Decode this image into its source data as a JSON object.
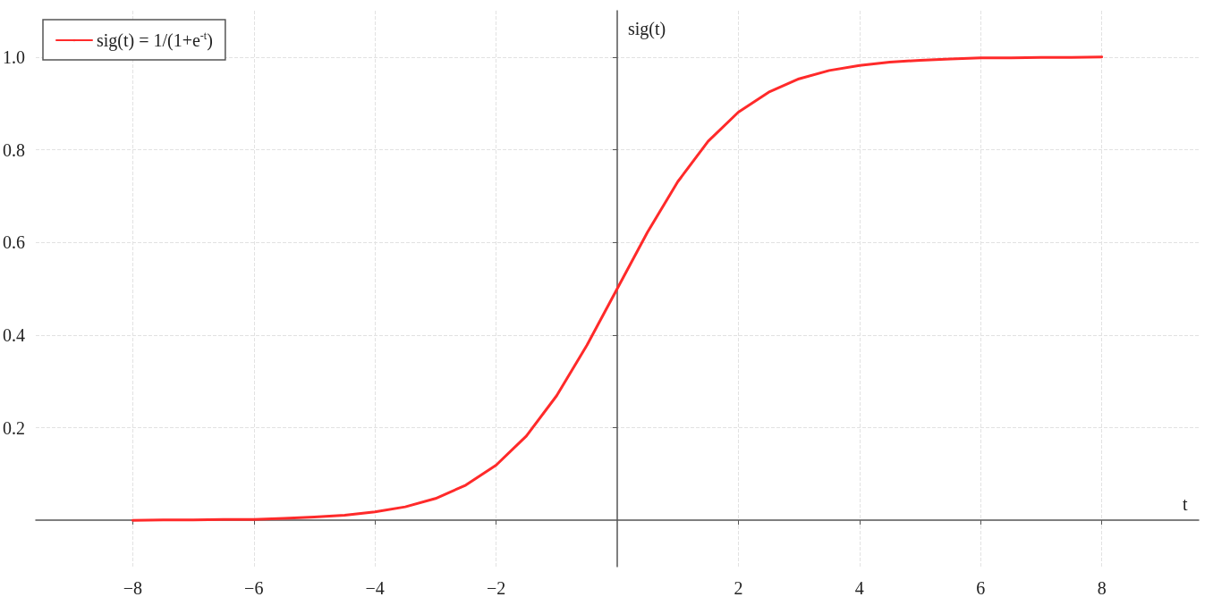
{
  "chart_data": {
    "type": "line",
    "xlabel": "t",
    "ylabel": "sig(t)",
    "x": [
      -8,
      -7.5,
      -7,
      -6.5,
      -6,
      -5.5,
      -5,
      -4.5,
      -4,
      -3.5,
      -3,
      -2.5,
      -2,
      -1.5,
      -1,
      -0.5,
      0,
      0.5,
      1,
      1.5,
      2,
      2.5,
      3,
      3.5,
      4,
      4.5,
      5,
      5.5,
      6,
      6.5,
      7,
      7.5,
      8
    ],
    "series": [
      {
        "name": "sig(t) = 1/(1+e$^{-t}$)",
        "color": "#ff2a2a",
        "values": [
          0.0,
          0.001,
          0.001,
          0.002,
          0.002,
          0.004,
          0.007,
          0.011,
          0.018,
          0.029,
          0.047,
          0.076,
          0.119,
          0.182,
          0.269,
          0.378,
          0.5,
          0.622,
          0.731,
          0.818,
          0.881,
          0.924,
          0.953,
          0.971,
          0.982,
          0.989,
          0.993,
          0.996,
          0.998,
          0.998,
          0.999,
          0.999,
          1.0
        ]
      }
    ],
    "xlim": [
      -9.6,
      9.6
    ],
    "xticks": [
      -8,
      -6,
      -4,
      -2,
      2,
      4,
      6,
      8
    ],
    "ylim": [
      -0.1,
      1.1
    ],
    "yticks": [
      0.2,
      0.4,
      0.6,
      0.8,
      {
        "value": 1,
        "label": "1.0"
      }
    ],
    "grid": true,
    "legend": "top left",
    "marker": "none",
    "line_style": "solid"
  }
}
